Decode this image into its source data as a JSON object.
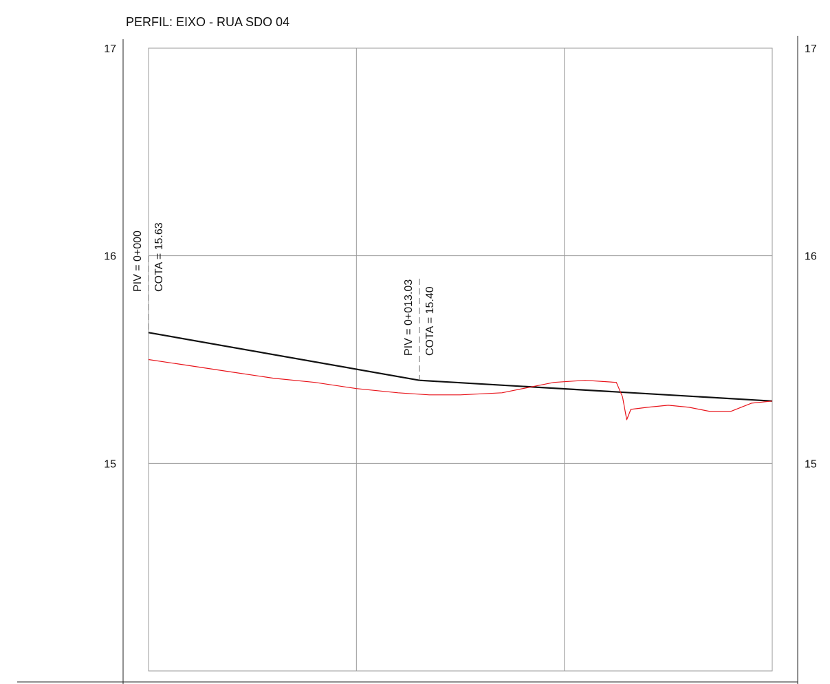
{
  "chart_data": {
    "type": "line",
    "title": "PERFIL: EIXO - RUA SDO 04",
    "xlabel": "",
    "ylabel": "",
    "xlim": [
      0,
      30
    ],
    "ylim": [
      14,
      17
    ],
    "grid": true,
    "y_ticks": [
      {
        "value": 17,
        "label": "17"
      },
      {
        "value": 16,
        "label": "16"
      },
      {
        "value": 15,
        "label": "15"
      }
    ],
    "series": [
      {
        "key": "grade",
        "color": "#111111",
        "points": [
          [
            0,
            15.63
          ],
          [
            13.03,
            15.4
          ],
          [
            30,
            15.3
          ]
        ]
      },
      {
        "key": "terrain",
        "color": "#e8141b",
        "points": [
          [
            0,
            15.5
          ],
          [
            2,
            15.47
          ],
          [
            4,
            15.44
          ],
          [
            6,
            15.41
          ],
          [
            8,
            15.39
          ],
          [
            10,
            15.36
          ],
          [
            12,
            15.34
          ],
          [
            13.5,
            15.33
          ],
          [
            15,
            15.33
          ],
          [
            17,
            15.34
          ],
          [
            18.5,
            15.37
          ],
          [
            19.5,
            15.39
          ],
          [
            21,
            15.4
          ],
          [
            22.5,
            15.39
          ],
          [
            22.8,
            15.32
          ],
          [
            23.0,
            15.21
          ],
          [
            23.2,
            15.26
          ],
          [
            24,
            15.27
          ],
          [
            25,
            15.28
          ],
          [
            26,
            15.27
          ],
          [
            27,
            15.25
          ],
          [
            28,
            15.25
          ],
          [
            29,
            15.29
          ],
          [
            30,
            15.3
          ]
        ]
      }
    ],
    "annotations": [
      {
        "station": 0,
        "elevation": 15.63,
        "piv": "PIV = 0+000",
        "cota": "COTA =  15.63"
      },
      {
        "station": 13.03,
        "elevation": 15.4,
        "piv": "PIV = 0+013.03",
        "cota": "COTA =  15.40"
      }
    ]
  }
}
